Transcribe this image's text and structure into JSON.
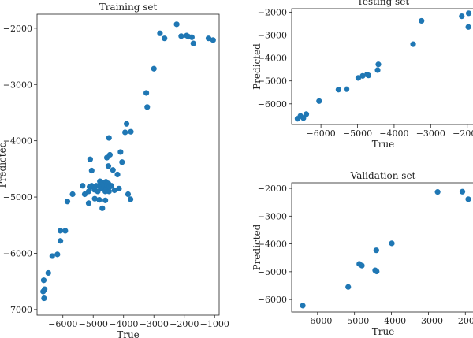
{
  "chart_data": [
    {
      "type": "scatter",
      "title": "Training set",
      "xlabel": "True",
      "ylabel": "Predicted",
      "xlim": [
        -6850,
        -850
      ],
      "ylim": [
        -7100,
        -1750
      ],
      "xticks": [
        -6000,
        -5000,
        -4000,
        -3000,
        -2000,
        -1000
      ],
      "xtick_labels": [
        "−6000",
        "−5000",
        "−4000",
        "−3000",
        "−2000",
        "−1000"
      ],
      "yticks": [
        -7000,
        -6000,
        -5000,
        -4000,
        -3000,
        -2000
      ],
      "ytick_labels": [
        "−7000",
        "−6000",
        "−5000",
        "−4000",
        "−3000",
        "−2000"
      ],
      "points": [
        [
          -6620,
          -6800
        ],
        [
          -6650,
          -6680
        ],
        [
          -6600,
          -6640
        ],
        [
          -6630,
          -6480
        ],
        [
          -6480,
          -6350
        ],
        [
          -6350,
          -6050
        ],
        [
          -6180,
          -6020
        ],
        [
          -6080,
          -5780
        ],
        [
          -6080,
          -5600
        ],
        [
          -5920,
          -5600
        ],
        [
          -5850,
          -5080
        ],
        [
          -5680,
          -4950
        ],
        [
          -5350,
          -4800
        ],
        [
          -5280,
          -4950
        ],
        [
          -5150,
          -4900
        ],
        [
          -5120,
          -4820
        ],
        [
          -5050,
          -4800
        ],
        [
          -5000,
          -4820
        ],
        [
          -4960,
          -4870
        ],
        [
          -4900,
          -4800
        ],
        [
          -4850,
          -4900
        ],
        [
          -4800,
          -4800
        ],
        [
          -4780,
          -4720
        ],
        [
          -4750,
          -4850
        ],
        [
          -4720,
          -4780
        ],
        [
          -4700,
          -4750
        ],
        [
          -4680,
          -4800
        ],
        [
          -4650,
          -4820
        ],
        [
          -4620,
          -4780
        ],
        [
          -4600,
          -4900
        ],
        [
          -4580,
          -4730
        ],
        [
          -4560,
          -4850
        ],
        [
          -4550,
          -4780
        ],
        [
          -4530,
          -4800
        ],
        [
          -4500,
          -4760
        ],
        [
          -4480,
          -4900
        ],
        [
          -4460,
          -4820
        ],
        [
          -4800,
          -5050
        ],
        [
          -4700,
          -5200
        ],
        [
          -4600,
          -5060
        ],
        [
          -4400,
          -4800
        ],
        [
          -4300,
          -4880
        ],
        [
          -4150,
          -4850
        ],
        [
          -4200,
          -4600
        ],
        [
          -4350,
          -4520
        ],
        [
          -4500,
          -4450
        ],
        [
          -4550,
          -4300
        ],
        [
          -4450,
          -4250
        ],
        [
          -4480,
          -3950
        ],
        [
          -4100,
          -4200
        ],
        [
          -3850,
          -4950
        ],
        [
          -3770,
          -5040
        ],
        [
          -4050,
          -4380
        ],
        [
          -3950,
          -3850
        ],
        [
          -3900,
          -3700
        ],
        [
          -3760,
          -3840
        ],
        [
          -5100,
          -4330
        ],
        [
          -5150,
          -5110
        ],
        [
          -5050,
          -4530
        ],
        [
          -4950,
          -5030
        ],
        [
          -3220,
          -3400
        ],
        [
          -3250,
          -3150
        ],
        [
          -3000,
          -2720
        ],
        [
          -2800,
          -2090
        ],
        [
          -2650,
          -2180
        ],
        [
          -2250,
          -1930
        ],
        [
          -2100,
          -2140
        ],
        [
          -1920,
          -2130
        ],
        [
          -1860,
          -2150
        ],
        [
          -1750,
          -2160
        ],
        [
          -1700,
          -2270
        ],
        [
          -1200,
          -2180
        ],
        [
          -1050,
          -2210
        ]
      ]
    },
    {
      "type": "scatter",
      "title": "Testing set",
      "xlabel": "True",
      "ylabel": "Predicted",
      "xlim": [
        -6800,
        -1800
      ],
      "ylim": [
        -6900,
        -1850
      ],
      "xticks": [
        -6000,
        -5000,
        -4000,
        -3000,
        -2000
      ],
      "xtick_labels": [
        "−6000",
        "−5000",
        "−4000",
        "−3000",
        "−2000"
      ],
      "yticks": [
        -6000,
        -5000,
        -4000,
        -3000,
        -2000
      ],
      "ytick_labels": [
        "−6000",
        "−5000",
        "−4000",
        "−3000",
        "−2000"
      ],
      "points": [
        [
          -6640,
          -6650
        ],
        [
          -6560,
          -6530
        ],
        [
          -6480,
          -6620
        ],
        [
          -6400,
          -6450
        ],
        [
          -6050,
          -5880
        ],
        [
          -5520,
          -5380
        ],
        [
          -5300,
          -5360
        ],
        [
          -4980,
          -4870
        ],
        [
          -4860,
          -4780
        ],
        [
          -4740,
          -4720
        ],
        [
          -4700,
          -4760
        ],
        [
          -4450,
          -4530
        ],
        [
          -4430,
          -4280
        ],
        [
          -3480,
          -3400
        ],
        [
          -3250,
          -2380
        ],
        [
          -2150,
          -2180
        ],
        [
          -1960,
          -2050
        ],
        [
          -1970,
          -2650
        ]
      ]
    },
    {
      "type": "scatter",
      "title": "Validation set",
      "xlabel": "True",
      "ylabel": "Predicted",
      "xlim": [
        -6700,
        -1750
      ],
      "ylim": [
        -6450,
        -1800
      ],
      "xticks": [
        -6000,
        -5000,
        -4000,
        -3000,
        -2000
      ],
      "xtick_labels": [
        "−6000",
        "−5000",
        "−4000",
        "−3000",
        "−2000"
      ],
      "yticks": [
        -6000,
        -5000,
        -4000,
        -3000,
        -2000
      ],
      "ytick_labels": [
        "−6000",
        "−5000",
        "−4000",
        "−3000",
        "−2000"
      ],
      "points": [
        [
          -6400,
          -6220
        ],
        [
          -5170,
          -5550
        ],
        [
          -4870,
          -4720
        ],
        [
          -4800,
          -4780
        ],
        [
          -4440,
          -4950
        ],
        [
          -4400,
          -4990
        ],
        [
          -4410,
          -4230
        ],
        [
          -3990,
          -3980
        ],
        [
          -2750,
          -2130
        ],
        [
          -2080,
          -2120
        ],
        [
          -1920,
          -2390
        ]
      ]
    }
  ],
  "colors": {
    "marker": "#1f77b4",
    "axis": "#222222"
  }
}
